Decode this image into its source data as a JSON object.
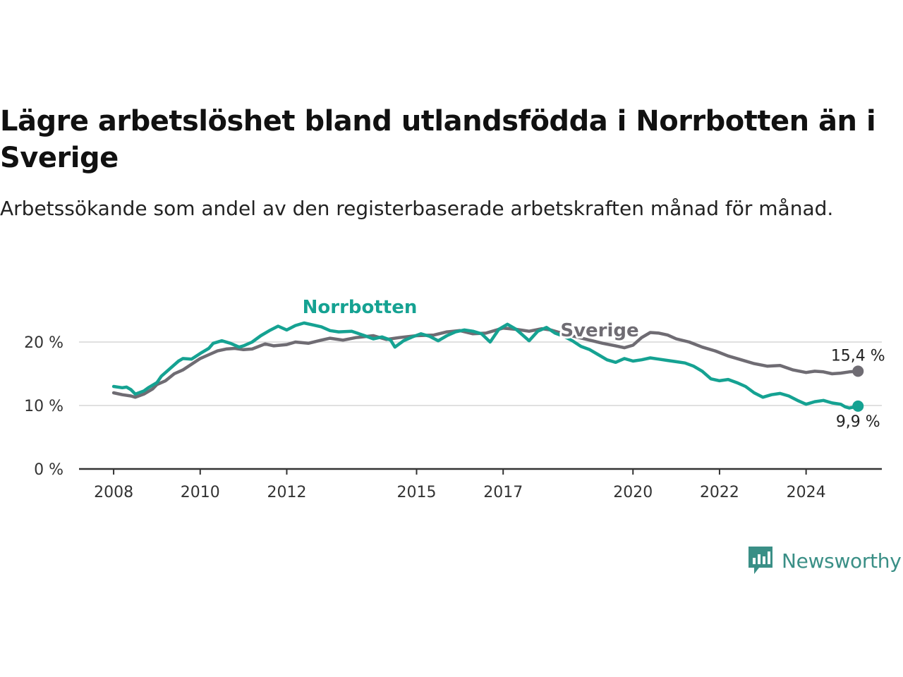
{
  "title": "Lägre arbetslöshet bland utlandsfödda i Norrbotten än i Sverige",
  "subtitle": "Arbetssökande som andel av den registerbaserade arbetskraften månad för månad.",
  "brand": {
    "name": "Newsworthy",
    "color": "#3a8f86"
  },
  "chart_data": {
    "type": "line",
    "title": "Lägre arbetslöshet bland utlandsfödda i Norrbotten än i Sverige",
    "subtitle": "Arbetssökande som andel av den registerbaserade arbetskraften månad för månad.",
    "xlabel": "",
    "ylabel": "",
    "x_range": [
      2007.2,
      2025.75
    ],
    "ylim": [
      0,
      25
    ],
    "y_ticks": [
      {
        "value": 0,
        "label": "0 %"
      },
      {
        "value": 10,
        "label": "10 %"
      },
      {
        "value": 20,
        "label": "20 %"
      }
    ],
    "x_ticks": [
      {
        "value": 2008,
        "label": "2008"
      },
      {
        "value": 2010,
        "label": "2010"
      },
      {
        "value": 2012,
        "label": "2012"
      },
      {
        "value": 2015,
        "label": "2015"
      },
      {
        "value": 2017,
        "label": "2017"
      },
      {
        "value": 2020,
        "label": "2020"
      },
      {
        "value": 2022,
        "label": "2022"
      },
      {
        "value": 2024,
        "label": "2024"
      }
    ],
    "grid": true,
    "legend": "direct labels",
    "series": [
      {
        "name": "Sverige",
        "color": "#6f6c73",
        "end_label": "15,4 %",
        "points": [
          [
            2008.0,
            12.0
          ],
          [
            2008.2,
            11.7
          ],
          [
            2008.4,
            11.5
          ],
          [
            2008.5,
            11.3
          ],
          [
            2008.7,
            11.8
          ],
          [
            2008.9,
            12.6
          ],
          [
            2009.0,
            13.3
          ],
          [
            2009.2,
            13.9
          ],
          [
            2009.4,
            15.0
          ],
          [
            2009.6,
            15.6
          ],
          [
            2009.8,
            16.5
          ],
          [
            2010.0,
            17.4
          ],
          [
            2010.2,
            18.0
          ],
          [
            2010.4,
            18.6
          ],
          [
            2010.6,
            18.9
          ],
          [
            2010.8,
            19.0
          ],
          [
            2011.0,
            18.8
          ],
          [
            2011.2,
            18.9
          ],
          [
            2011.5,
            19.7
          ],
          [
            2011.7,
            19.4
          ],
          [
            2012.0,
            19.6
          ],
          [
            2012.2,
            20.0
          ],
          [
            2012.5,
            19.8
          ],
          [
            2012.8,
            20.3
          ],
          [
            2013.0,
            20.6
          ],
          [
            2013.3,
            20.3
          ],
          [
            2013.6,
            20.7
          ],
          [
            2014.0,
            21.0
          ],
          [
            2014.3,
            20.4
          ],
          [
            2014.6,
            20.7
          ],
          [
            2015.0,
            21.0
          ],
          [
            2015.4,
            21.1
          ],
          [
            2015.7,
            21.6
          ],
          [
            2016.0,
            21.8
          ],
          [
            2016.3,
            21.3
          ],
          [
            2016.6,
            21.4
          ],
          [
            2017.0,
            22.2
          ],
          [
            2017.3,
            22.0
          ],
          [
            2017.6,
            21.7
          ],
          [
            2017.9,
            22.1
          ],
          [
            2018.1,
            21.9
          ],
          [
            2018.4,
            21.3
          ],
          [
            2018.7,
            20.8
          ],
          [
            2019.0,
            20.3
          ],
          [
            2019.3,
            19.8
          ],
          [
            2019.6,
            19.4
          ],
          [
            2019.8,
            19.1
          ],
          [
            2020.0,
            19.5
          ],
          [
            2020.2,
            20.7
          ],
          [
            2020.4,
            21.5
          ],
          [
            2020.6,
            21.4
          ],
          [
            2020.8,
            21.1
          ],
          [
            2021.0,
            20.5
          ],
          [
            2021.3,
            20.0
          ],
          [
            2021.6,
            19.2
          ],
          [
            2021.9,
            18.6
          ],
          [
            2022.2,
            17.8
          ],
          [
            2022.5,
            17.2
          ],
          [
            2022.8,
            16.6
          ],
          [
            2023.1,
            16.2
          ],
          [
            2023.4,
            16.3
          ],
          [
            2023.7,
            15.6
          ],
          [
            2024.0,
            15.2
          ],
          [
            2024.2,
            15.4
          ],
          [
            2024.4,
            15.3
          ],
          [
            2024.6,
            15.0
          ],
          [
            2024.8,
            15.1
          ],
          [
            2025.0,
            15.3
          ],
          [
            2025.2,
            15.4
          ]
        ]
      },
      {
        "name": "Norrbotten",
        "color": "#15a292",
        "end_label": "9,9 %",
        "points": [
          [
            2008.0,
            13.0
          ],
          [
            2008.2,
            12.8
          ],
          [
            2008.3,
            12.9
          ],
          [
            2008.4,
            12.5
          ],
          [
            2008.5,
            11.8
          ],
          [
            2008.7,
            12.3
          ],
          [
            2008.8,
            12.8
          ],
          [
            2009.0,
            13.6
          ],
          [
            2009.1,
            14.6
          ],
          [
            2009.3,
            15.8
          ],
          [
            2009.5,
            17.0
          ],
          [
            2009.6,
            17.4
          ],
          [
            2009.8,
            17.3
          ],
          [
            2010.0,
            18.2
          ],
          [
            2010.2,
            19.0
          ],
          [
            2010.3,
            19.8
          ],
          [
            2010.5,
            20.2
          ],
          [
            2010.7,
            19.8
          ],
          [
            2010.9,
            19.2
          ],
          [
            2011.0,
            19.4
          ],
          [
            2011.2,
            20.0
          ],
          [
            2011.4,
            21.0
          ],
          [
            2011.6,
            21.8
          ],
          [
            2011.8,
            22.5
          ],
          [
            2012.0,
            21.9
          ],
          [
            2012.2,
            22.6
          ],
          [
            2012.4,
            23.0
          ],
          [
            2012.6,
            22.7
          ],
          [
            2012.8,
            22.4
          ],
          [
            2013.0,
            21.8
          ],
          [
            2013.2,
            21.6
          ],
          [
            2013.5,
            21.7
          ],
          [
            2013.8,
            21.0
          ],
          [
            2014.0,
            20.5
          ],
          [
            2014.2,
            20.8
          ],
          [
            2014.4,
            20.3
          ],
          [
            2014.5,
            19.2
          ],
          [
            2014.7,
            20.2
          ],
          [
            2014.9,
            20.8
          ],
          [
            2015.1,
            21.3
          ],
          [
            2015.3,
            20.9
          ],
          [
            2015.5,
            20.2
          ],
          [
            2015.7,
            21.0
          ],
          [
            2015.9,
            21.6
          ],
          [
            2016.1,
            21.9
          ],
          [
            2016.3,
            21.7
          ],
          [
            2016.5,
            21.3
          ],
          [
            2016.7,
            20.0
          ],
          [
            2016.9,
            22.0
          ],
          [
            2017.1,
            22.8
          ],
          [
            2017.3,
            22.0
          ],
          [
            2017.5,
            20.8
          ],
          [
            2017.6,
            20.2
          ],
          [
            2017.8,
            21.7
          ],
          [
            2018.0,
            22.3
          ],
          [
            2018.2,
            21.4
          ],
          [
            2018.4,
            20.9
          ],
          [
            2018.6,
            20.2
          ],
          [
            2018.8,
            19.3
          ],
          [
            2019.0,
            18.8
          ],
          [
            2019.2,
            18.0
          ],
          [
            2019.4,
            17.2
          ],
          [
            2019.6,
            16.8
          ],
          [
            2019.8,
            17.4
          ],
          [
            2020.0,
            17.0
          ],
          [
            2020.2,
            17.2
          ],
          [
            2020.4,
            17.5
          ],
          [
            2020.6,
            17.3
          ],
          [
            2020.8,
            17.1
          ],
          [
            2021.0,
            16.9
          ],
          [
            2021.2,
            16.7
          ],
          [
            2021.4,
            16.2
          ],
          [
            2021.6,
            15.4
          ],
          [
            2021.8,
            14.2
          ],
          [
            2022.0,
            13.9
          ],
          [
            2022.2,
            14.1
          ],
          [
            2022.4,
            13.6
          ],
          [
            2022.6,
            13.0
          ],
          [
            2022.8,
            12.0
          ],
          [
            2023.0,
            11.3
          ],
          [
            2023.2,
            11.7
          ],
          [
            2023.4,
            11.9
          ],
          [
            2023.6,
            11.5
          ],
          [
            2023.8,
            10.8
          ],
          [
            2024.0,
            10.2
          ],
          [
            2024.2,
            10.6
          ],
          [
            2024.4,
            10.8
          ],
          [
            2024.6,
            10.4
          ],
          [
            2024.8,
            10.2
          ],
          [
            2024.9,
            9.8
          ],
          [
            2025.0,
            9.6
          ],
          [
            2025.2,
            9.9
          ]
        ]
      }
    ]
  }
}
